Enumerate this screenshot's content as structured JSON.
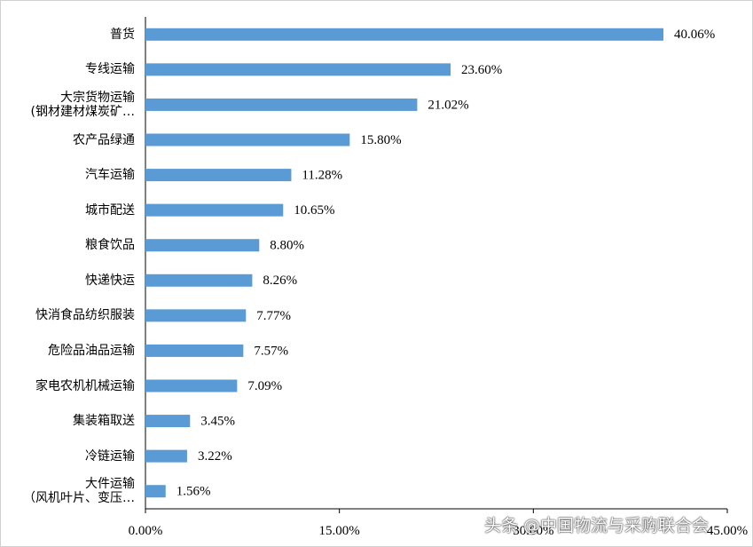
{
  "chart_data": {
    "type": "bar",
    "orientation": "horizontal",
    "color": "#5b9bd5",
    "categories": [
      "普货",
      "专线运输",
      "大宗货物运输\n(钢材建材煤炭矿…",
      "农产品绿通",
      "汽车运输",
      "城市配送",
      "粮食饮品",
      "快递快运",
      "快消食品纺织服装",
      "危险品油品运输",
      "家电农机机械运输",
      "集装箱取送",
      "冷链运输",
      "大件运输\n（风机叶片、变压…"
    ],
    "values": [
      40.06,
      23.6,
      21.02,
      15.8,
      11.28,
      10.65,
      8.8,
      8.26,
      7.77,
      7.57,
      7.09,
      3.45,
      3.22,
      1.56
    ],
    "value_labels": [
      "40.06%",
      "23.60%",
      "21.02%",
      "15.80%",
      "11.28%",
      "10.65%",
      "8.80%",
      "8.26%",
      "7.77%",
      "7.57%",
      "7.09%",
      "3.45%",
      "3.22%",
      "1.56%"
    ],
    "xlim": [
      0,
      45
    ],
    "xticks": [
      {
        "value": 0,
        "label": "0.00%"
      },
      {
        "value": 15,
        "label": "15.00%"
      },
      {
        "value": 30,
        "label": "30.00%"
      },
      {
        "value": 45,
        "label": "45.00%"
      }
    ],
    "watermark": "头条 @中国物流与采购联合会"
  }
}
